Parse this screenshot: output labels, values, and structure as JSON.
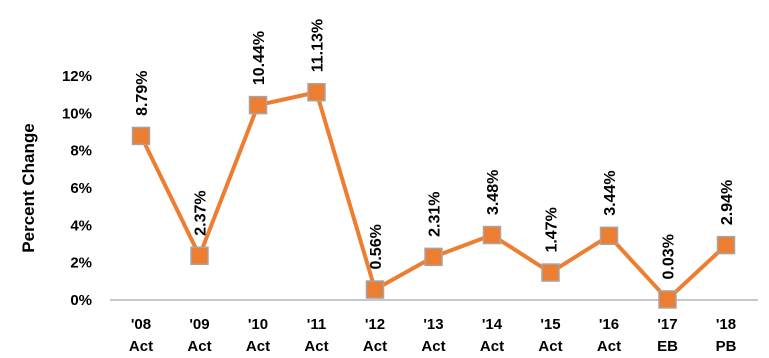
{
  "chart_data": {
    "type": "line",
    "title": "",
    "xlabel": "",
    "ylabel": "Percent Change",
    "ylim": [
      0,
      12
    ],
    "yticks": [
      0,
      2,
      4,
      6,
      8,
      10,
      12
    ],
    "ytick_labels": [
      "0%",
      "2%",
      "4%",
      "6%",
      "8%",
      "10%",
      "12%"
    ],
    "grid": false,
    "legend": "none",
    "categories": [
      {
        "top": "'08",
        "bottom": "Act"
      },
      {
        "top": "'09",
        "bottom": "Act"
      },
      {
        "top": "'10",
        "bottom": "Act"
      },
      {
        "top": "'11",
        "bottom": "Act"
      },
      {
        "top": "'12",
        "bottom": "Act"
      },
      {
        "top": "'13",
        "bottom": "Act"
      },
      {
        "top": "'14",
        "bottom": "Act"
      },
      {
        "top": "'15",
        "bottom": "Act"
      },
      {
        "top": "'16",
        "bottom": "Act"
      },
      {
        "top": "'17",
        "bottom": "EB"
      },
      {
        "top": "'18",
        "bottom": "PB"
      }
    ],
    "series": [
      {
        "values": [
          8.79,
          2.37,
          10.44,
          11.13,
          0.56,
          2.31,
          3.48,
          1.47,
          3.44,
          0.03,
          2.94
        ],
        "labels": [
          "8.79%",
          "2.37%",
          "10.44%",
          "11.13%",
          "0.56%",
          "2.31%",
          "3.48%",
          "1.47%",
          "3.44%",
          "0.03%",
          "2.94%"
        ],
        "color": "#ED7D31",
        "marker": "square",
        "marker_fill": "#ED7D31",
        "marker_edge": "#A5A5A5"
      }
    ],
    "colors": {
      "axis": "#A6A6A6",
      "text": "#000000"
    }
  }
}
